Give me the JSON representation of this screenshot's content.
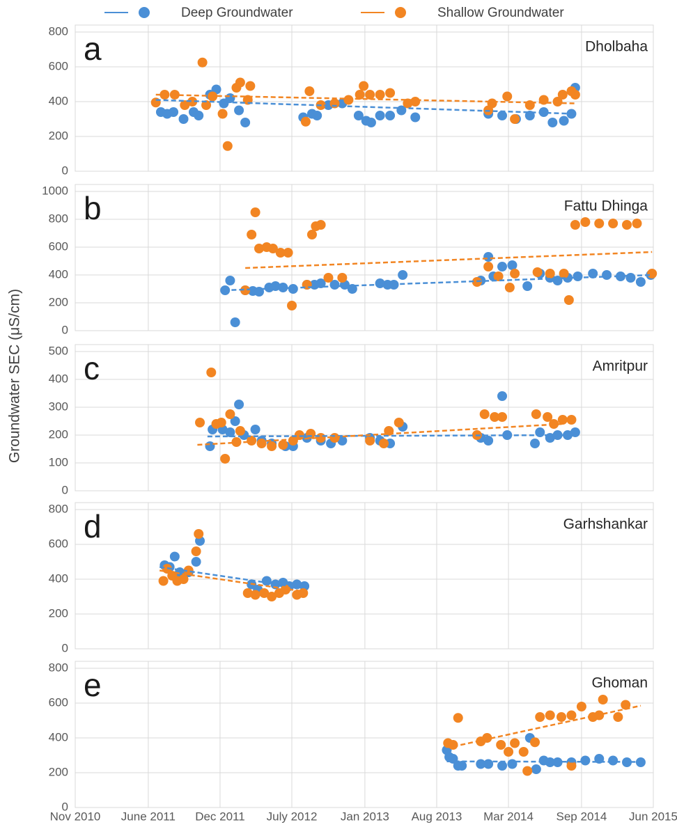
{
  "y_axis_title": "Groundwater SEC (μS/cm)",
  "legend": [
    {
      "name": "Deep Groundwater",
      "color": "#4a8fd6"
    },
    {
      "name": "Shallow Groundwater",
      "color": "#f28522"
    }
  ],
  "xaxis": {
    "xlim": [
      2010.83,
      2015.42
    ],
    "xticks": [
      {
        "value": 2010.83,
        "label": "Nov 2010"
      },
      {
        "value": 2011.41,
        "label": "June 2011"
      },
      {
        "value": 2011.98,
        "label": "Dec 2011"
      },
      {
        "value": 2012.55,
        "label": "July 2012"
      },
      {
        "value": 2013.13,
        "label": "Jan 2013"
      },
      {
        "value": 2013.7,
        "label": "Aug 2013"
      },
      {
        "value": 2014.27,
        "label": "Mar 2014"
      },
      {
        "value": 2014.85,
        "label": "Sep 2014"
      },
      {
        "value": 2015.42,
        "label": "Jun 2015"
      }
    ]
  },
  "chart_data": [
    {
      "type": "scatter",
      "label": "a",
      "title": "Dholbaha",
      "ylim": [
        0,
        800
      ],
      "yticks": [
        0,
        200,
        400,
        600,
        800
      ],
      "grid": true,
      "series": [
        {
          "color": "#4a8fd6",
          "x": [
            2011.51,
            2011.56,
            2011.61,
            2011.69,
            2011.77,
            2011.81,
            2011.9,
            2011.95,
            2012.01,
            2012.06,
            2012.13,
            2012.18,
            2012.64,
            2012.71,
            2012.75,
            2012.84,
            2012.95,
            2013.08,
            2013.14,
            2013.18,
            2013.25,
            2013.33,
            2013.42,
            2013.53,
            2014.11,
            2014.22,
            2014.33,
            2014.44,
            2014.55,
            2014.62,
            2014.71,
            2014.77,
            2014.8
          ],
          "values": [
            340,
            330,
            340,
            300,
            340,
            320,
            440,
            470,
            390,
            420,
            350,
            280,
            310,
            330,
            320,
            380,
            390,
            320,
            290,
            280,
            320,
            320,
            350,
            310,
            330,
            320,
            300,
            320,
            340,
            280,
            290,
            330,
            480
          ],
          "trendline": {
            "x": [
              2011.47,
              2014.8
            ],
            "values": [
              410,
              330
            ]
          }
        },
        {
          "color": "#f28522",
          "x": [
            2011.47,
            2011.54,
            2011.62,
            2011.7,
            2011.76,
            2011.84,
            2011.87,
            2011.92,
            2012.0,
            2012.04,
            2012.11,
            2012.14,
            2012.2,
            2012.22,
            2012.66,
            2012.69,
            2012.78,
            2012.89,
            2013.0,
            2013.09,
            2013.12,
            2013.17,
            2013.25,
            2013.33,
            2013.47,
            2013.53,
            2014.11,
            2014.14,
            2014.26,
            2014.32,
            2014.44,
            2014.55,
            2014.66,
            2014.7,
            2014.77,
            2014.8
          ],
          "values": [
            395,
            440,
            440,
            380,
            400,
            625,
            380,
            430,
            330,
            145,
            480,
            510,
            410,
            490,
            285,
            460,
            380,
            390,
            410,
            440,
            490,
            440,
            440,
            450,
            390,
            400,
            350,
            390,
            430,
            300,
            380,
            410,
            400,
            440,
            460,
            440
          ],
          "trendline": {
            "x": [
              2011.47,
              2014.8
            ],
            "values": [
              440,
              390
            ]
          }
        }
      ]
    },
    {
      "type": "scatter",
      "label": "b",
      "title": "Fattu Dhinga",
      "ylim": [
        0,
        1000
      ],
      "yticks": [
        0,
        200,
        400,
        600,
        800,
        1000
      ],
      "grid": true,
      "series": [
        {
          "color": "#4a8fd6",
          "x": [
            2012.02,
            2012.06,
            2012.1,
            2012.18,
            2012.24,
            2012.29,
            2012.37,
            2012.42,
            2012.48,
            2012.56,
            2012.67,
            2012.73,
            2012.78,
            2012.89,
            2012.97,
            2013.03,
            2013.25,
            2013.31,
            2013.36,
            2013.43,
            2014.05,
            2014.11,
            2014.15,
            2014.22,
            2014.3,
            2014.42,
            2014.52,
            2014.6,
            2014.66,
            2014.74,
            2014.82,
            2014.94,
            2015.05,
            2015.16,
            2015.24,
            2015.32,
            2015.4
          ],
          "values": [
            290,
            360,
            60,
            290,
            285,
            280,
            310,
            320,
            310,
            300,
            330,
            330,
            340,
            330,
            330,
            300,
            340,
            330,
            330,
            400,
            360,
            530,
            390,
            460,
            470,
            320,
            410,
            380,
            360,
            380,
            390,
            410,
            400,
            390,
            380,
            350,
            400
          ],
          "trendline": {
            "x": [
              2012.01,
              2015.41
            ],
            "values": [
              290,
              400
            ]
          }
        },
        {
          "color": "#f28522",
          "x": [
            2012.18,
            2012.23,
            2012.26,
            2012.29,
            2012.35,
            2012.4,
            2012.46,
            2012.52,
            2012.55,
            2012.67,
            2012.71,
            2012.74,
            2012.78,
            2012.84,
            2012.95,
            2014.02,
            2014.11,
            2014.19,
            2014.28,
            2014.32,
            2014.5,
            2014.6,
            2014.71,
            2014.75,
            2014.8,
            2014.88,
            2014.99,
            2015.1,
            2015.21,
            2015.29,
            2015.41
          ],
          "values": [
            290,
            690,
            850,
            590,
            600,
            590,
            560,
            560,
            180,
            330,
            690,
            750,
            760,
            380,
            380,
            350,
            460,
            390,
            310,
            410,
            420,
            410,
            410,
            220,
            760,
            780,
            770,
            770,
            760,
            770,
            410
          ],
          "trendline": {
            "x": [
              2012.18,
              2015.41
            ],
            "values": [
              450,
              565
            ]
          }
        }
      ]
    },
    {
      "type": "scatter",
      "label": "c",
      "title": "Amritpur",
      "ylim": [
        0,
        500
      ],
      "yticks": [
        0,
        100,
        200,
        300,
        400,
        500
      ],
      "grid": true,
      "series": [
        {
          "color": "#4a8fd6",
          "x": [
            2011.9,
            2011.92,
            2012.0,
            2012.06,
            2012.1,
            2012.13,
            2012.17,
            2012.26,
            2012.31,
            2012.39,
            2012.5,
            2012.56,
            2012.67,
            2012.78,
            2012.86,
            2012.95,
            2013.17,
            2013.25,
            2013.33,
            2013.43,
            2014.05,
            2014.11,
            2014.22,
            2014.26,
            2014.48,
            2014.52,
            2014.6,
            2014.66,
            2014.74,
            2014.8
          ],
          "values": [
            160,
            220,
            220,
            210,
            250,
            310,
            200,
            220,
            180,
            170,
            160,
            160,
            190,
            180,
            170,
            180,
            190,
            180,
            170,
            230,
            190,
            180,
            340,
            200,
            170,
            210,
            190,
            200,
            200,
            210
          ],
          "trendline": {
            "x": [
              2011.88,
              2014.8
            ],
            "values": [
              195,
              200
            ]
          }
        },
        {
          "color": "#f28522",
          "x": [
            2011.82,
            2011.91,
            2011.95,
            2011.99,
            2012.02,
            2012.06,
            2012.11,
            2012.14,
            2012.23,
            2012.31,
            2012.39,
            2012.48,
            2012.56,
            2012.61,
            2012.7,
            2012.78,
            2012.89,
            2013.17,
            2013.28,
            2013.32,
            2013.4,
            2014.02,
            2014.08,
            2014.16,
            2014.22,
            2014.49,
            2014.58,
            2014.63,
            2014.7,
            2014.77
          ],
          "values": [
            245,
            425,
            240,
            245,
            115,
            275,
            175,
            215,
            180,
            170,
            160,
            165,
            180,
            200,
            205,
            190,
            190,
            180,
            170,
            215,
            245,
            200,
            275,
            265,
            265,
            275,
            265,
            240,
            255,
            255
          ],
          "trendline": {
            "x": [
              2011.8,
              2014.7
            ],
            "values": [
              165,
              240
            ]
          }
        }
      ]
    },
    {
      "type": "scatter",
      "label": "d",
      "title": "Garhshankar",
      "ylim": [
        0,
        800
      ],
      "yticks": [
        0,
        200,
        400,
        600,
        800
      ],
      "grid": true,
      "series": [
        {
          "color": "#4a8fd6",
          "x": [
            2011.54,
            2011.58,
            2011.62,
            2011.66,
            2011.73,
            2011.79,
            2011.82,
            2012.23,
            2012.28,
            2012.35,
            2012.42,
            2012.48,
            2012.53,
            2012.59,
            2012.65
          ],
          "values": [
            480,
            470,
            530,
            440,
            440,
            500,
            620,
            370,
            340,
            390,
            370,
            380,
            360,
            370,
            360
          ],
          "trendline": {
            "x": [
              2011.5,
              2012.64
            ],
            "values": [
              470,
              350
            ]
          }
        },
        {
          "color": "#f28522",
          "x": [
            2011.53,
            2011.56,
            2011.6,
            2011.64,
            2011.69,
            2011.73,
            2011.79,
            2011.81,
            2012.2,
            2012.26,
            2012.33,
            2012.39,
            2012.45,
            2012.5,
            2012.59,
            2012.64
          ],
          "values": [
            390,
            460,
            420,
            390,
            400,
            450,
            560,
            660,
            320,
            310,
            320,
            300,
            320,
            340,
            310,
            320
          ],
          "trendline": {
            "x": [
              2011.5,
              2012.64
            ],
            "values": [
              450,
              330
            ]
          }
        }
      ]
    },
    {
      "type": "scatter",
      "label": "e",
      "title": "Ghoman",
      "ylim": [
        0,
        800
      ],
      "yticks": [
        0,
        200,
        400,
        600,
        800
      ],
      "grid": true,
      "series": [
        {
          "color": "#4a8fd6",
          "x": [
            2013.78,
            2013.8,
            2013.83,
            2013.87,
            2013.9,
            2014.05,
            2014.11,
            2014.22,
            2014.3,
            2014.44,
            2014.49,
            2014.55,
            2014.6,
            2014.66,
            2014.77,
            2014.88,
            2014.99,
            2015.1,
            2015.21,
            2015.32
          ],
          "values": [
            330,
            290,
            280,
            240,
            240,
            250,
            250,
            240,
            250,
            400,
            220,
            270,
            260,
            260,
            260,
            270,
            280,
            270,
            260,
            260
          ],
          "trendline": {
            "x": [
              2013.78,
              2015.32
            ],
            "values": [
              265,
              262
            ]
          }
        },
        {
          "color": "#f28522",
          "x": [
            2013.79,
            2013.83,
            2013.87,
            2014.05,
            2014.1,
            2014.21,
            2014.27,
            2014.32,
            2014.39,
            2014.42,
            2014.48,
            2014.52,
            2014.6,
            2014.69,
            2014.77,
            2014.85,
            2014.94,
            2014.99,
            2015.02,
            2015.14,
            2015.2,
            2014.77
          ],
          "values": [
            370,
            360,
            515,
            380,
            400,
            360,
            320,
            370,
            320,
            210,
            375,
            520,
            530,
            520,
            530,
            580,
            520,
            530,
            620,
            520,
            590,
            240
          ],
          "trendline": {
            "x": [
              2013.83,
              2015.32
            ],
            "values": [
              350,
              585
            ]
          }
        }
      ]
    }
  ]
}
